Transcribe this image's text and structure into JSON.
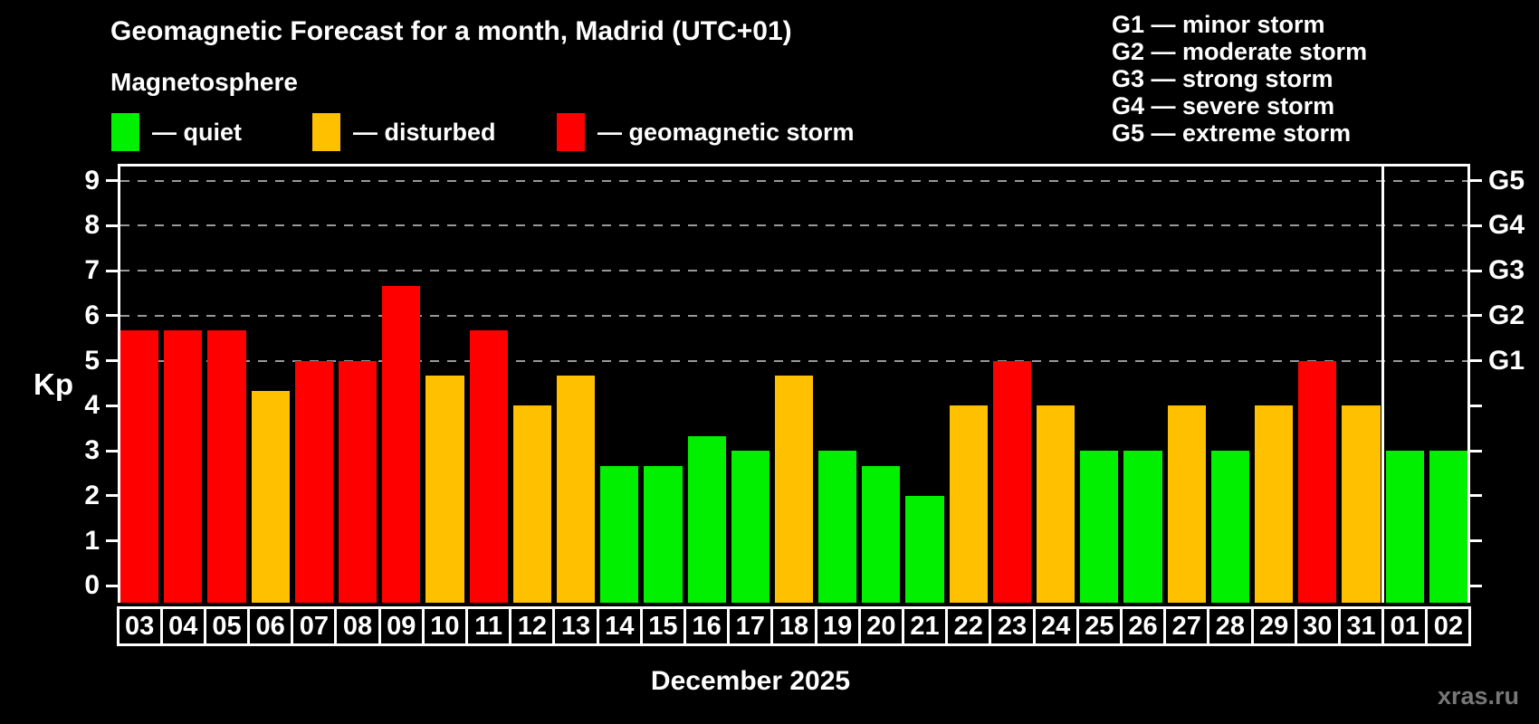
{
  "header": {
    "title": "Geomagnetic Forecast for a month, Madrid (UTC+01)",
    "subtitle": "Magnetosphere"
  },
  "legend": [
    {
      "key": "quiet",
      "label": "— quiet",
      "color": "#00f000"
    },
    {
      "key": "disturbed",
      "label": "— disturbed",
      "color": "#ffc000"
    },
    {
      "key": "storm",
      "label": "— geomagnetic storm",
      "color": "#ff0000"
    }
  ],
  "storm_scale": [
    "G1 — minor storm",
    "G2 — moderate storm",
    "G3 — strong storm",
    "G4 — severe storm",
    "G5 — extreme storm"
  ],
  "watermark": "xras.ru",
  "chart_data": {
    "type": "bar",
    "title": "Geomagnetic Forecast for a month, Madrid (UTC+01)",
    "xlabel": "December 2025",
    "ylabel": "Kp",
    "ylim": [
      -0.375,
      9.375
    ],
    "yticks": [
      0,
      1,
      2,
      3,
      4,
      5,
      6,
      7,
      8,
      9
    ],
    "gridlines": [
      5,
      6,
      7,
      8,
      9
    ],
    "grid_color": "#999999",
    "right_axis": [
      {
        "kp": 5,
        "label": "G1"
      },
      {
        "kp": 6,
        "label": "G2"
      },
      {
        "kp": 7,
        "label": "G3"
      },
      {
        "kp": 8,
        "label": "G4"
      },
      {
        "kp": 9,
        "label": "G5"
      }
    ],
    "month_separator_after": "31",
    "categories": [
      "03",
      "04",
      "05",
      "06",
      "07",
      "08",
      "09",
      "10",
      "11",
      "12",
      "13",
      "14",
      "15",
      "16",
      "17",
      "18",
      "19",
      "20",
      "21",
      "22",
      "23",
      "24",
      "25",
      "26",
      "27",
      "28",
      "29",
      "30",
      "31",
      "01",
      "02"
    ],
    "values": [
      5.67,
      5.67,
      5.67,
      4.33,
      5,
      5,
      6.67,
      4.67,
      5.67,
      4,
      4.67,
      2.67,
      2.67,
      3.33,
      3,
      4.67,
      3,
      2.67,
      2,
      4,
      5,
      4,
      3,
      3,
      4,
      3,
      4,
      5,
      4,
      3,
      3
    ],
    "statuses": [
      "storm",
      "storm",
      "storm",
      "disturbed",
      "storm",
      "storm",
      "storm",
      "disturbed",
      "storm",
      "disturbed",
      "disturbed",
      "quiet",
      "quiet",
      "quiet",
      "quiet",
      "disturbed",
      "quiet",
      "quiet",
      "quiet",
      "disturbed",
      "storm",
      "disturbed",
      "quiet",
      "quiet",
      "disturbed",
      "quiet",
      "disturbed",
      "storm",
      "disturbed",
      "quiet",
      "quiet"
    ]
  }
}
